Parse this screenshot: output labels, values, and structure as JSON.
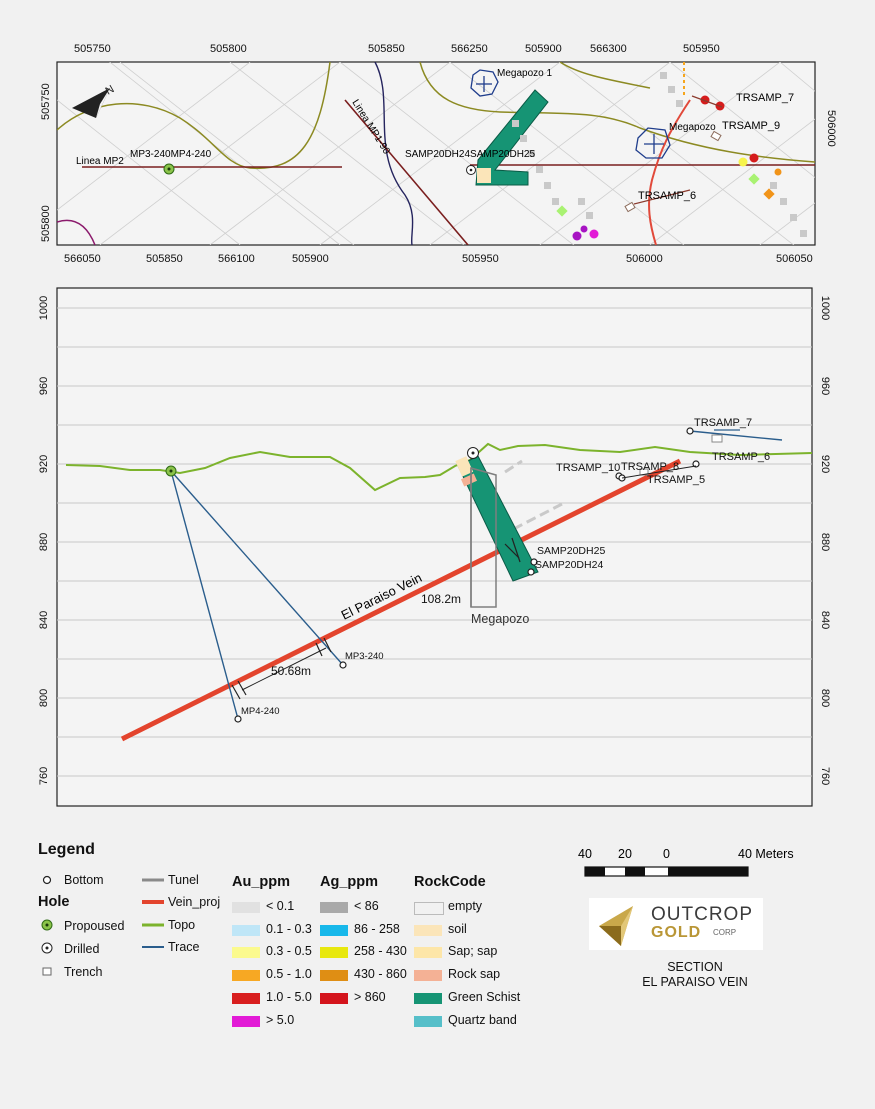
{
  "plan_map": {
    "top_ticks": [
      "505750",
      "505800",
      "505850",
      "566250",
      "505900",
      "566300",
      "505950"
    ],
    "bottom_ticks": [
      "566050",
      "505850",
      "566100",
      "505900",
      "505950",
      "506000",
      "506050"
    ],
    "left_ticks": [
      "505750",
      "505800"
    ],
    "right_ticks": [
      "506000"
    ],
    "labels": {
      "megapozo_1": "Megapozo 1",
      "megapozo": "Megapozo",
      "trsamp_7": "TRSAMP_7",
      "trsamp_9": "TRSAMP_9",
      "trsamp_6": "TRSAMP_6",
      "linea_mp2": "Linea MP2",
      "mp3_mp4": "MP3-240MP4-240",
      "linea_mp1": "Linea MP1-90",
      "samp_pair": "SAMP20DH24SAMP20DH25",
      "north": "N"
    }
  },
  "section": {
    "elev_ticks": [
      "1000",
      "960",
      "920",
      "880",
      "840",
      "800",
      "760"
    ],
    "labels": {
      "trsamp_7": "TRSAMP_7",
      "trsamp_6": "TRSAMP_6",
      "trsamp_10": "TRSAMP_10",
      "trsamp_8": "TRSAMP_8",
      "trsamp_5": "TRSAMP_5",
      "samp25": "SAMP20DH25",
      "samp24": "SAMP20DH24",
      "vein": "El Paraiso Vein",
      "len1": "108.2m",
      "megapozo": "Megapozo",
      "len2": "50.68m",
      "mp3": "MP3-240",
      "mp4": "MP4-240"
    }
  },
  "legend": {
    "title": "Legend",
    "bottom": "Bottom",
    "hole": "Hole",
    "propoused": "Propoused",
    "drilled": "Drilled",
    "trench": "Trench",
    "tunel": "Tunel",
    "vein_proj": "Vein_proj",
    "topo": "Topo",
    "trace": "Trace",
    "au_title": "Au_ppm",
    "au": [
      "< 0.1",
      "0.1 - 0.3",
      "0.3 - 0.5",
      "0.5 - 1.0",
      "1.0 - 5.0",
      "> 5.0"
    ],
    "au_colors": [
      "#e1e1e1",
      "#bfe6f7",
      "#fbfa8e",
      "#f7a823",
      "#d81e1e",
      "#e21bd6"
    ],
    "ag_title": "Ag_ppm",
    "ag": [
      "< 86",
      "86 - 258",
      "258 - 430",
      "430 - 860",
      "> 860"
    ],
    "ag_colors": [
      "#a9a9a9",
      "#18b8ea",
      "#e8e80e",
      "#df8e14",
      "#d4141c"
    ],
    "rock_title": "RockCode",
    "rock": [
      "empty",
      "soil",
      "Sap; sap",
      "Rock sap",
      "Green Schist",
      "Quartz band"
    ],
    "rock_colors": [
      "#f1f1f1",
      "#fbe5b9",
      "#fde6a8",
      "#f4b195",
      "#169474",
      "#56bfc9"
    ]
  },
  "scale": {
    "labels": [
      "40",
      "20",
      "0",
      "40 Meters"
    ]
  },
  "logo": {
    "line1": "OUTCROP",
    "line2": "GOLD",
    "line3": "CORP"
  },
  "section_title": {
    "line1": "SECTION",
    "line2": "EL PARAISO VEIN"
  }
}
